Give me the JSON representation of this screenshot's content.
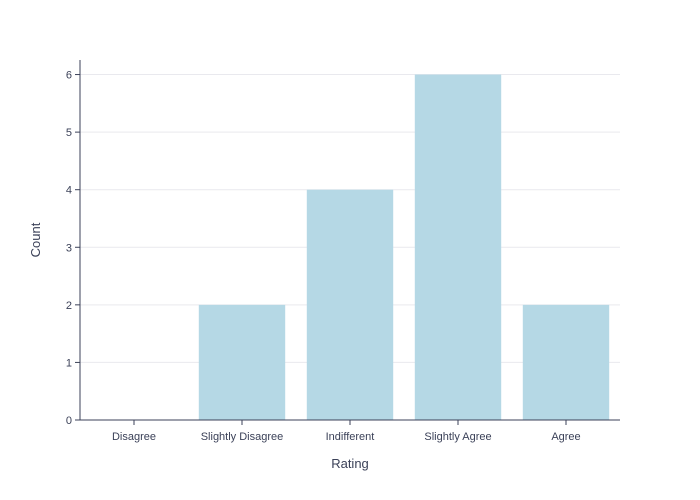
{
  "chart_data": {
    "type": "bar",
    "categories": [
      "Disagree",
      "Slightly Disagree",
      "Indifferent",
      "Slightly Agree",
      "Agree"
    ],
    "values": [
      0,
      2,
      4,
      6,
      2
    ],
    "xlabel": "Rating",
    "ylabel": "Count",
    "ylim": [
      0,
      6.6
    ],
    "yticks": [
      0,
      1,
      2,
      3,
      4,
      5,
      6
    ],
    "grid": true,
    "legend": "none",
    "colors": {
      "bar": "#b5d8e5",
      "axis": "#3b4158",
      "grid": "#e9e9ee"
    }
  }
}
